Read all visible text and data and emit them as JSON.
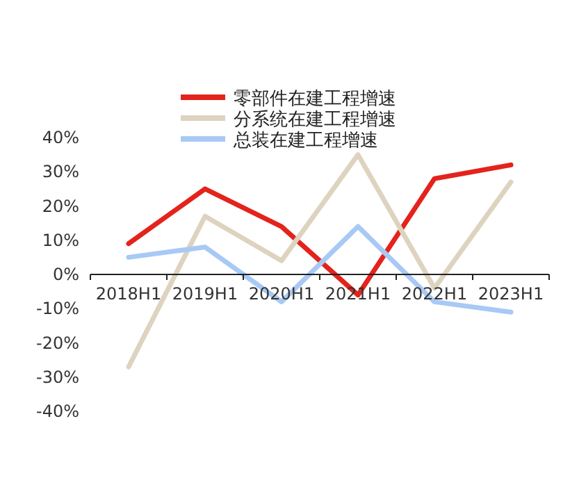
{
  "chart_data": {
    "type": "line",
    "categories": [
      "2018H1",
      "2019H1",
      "2020H1",
      "2021H1",
      "2022H1",
      "2023H1"
    ],
    "series": [
      {
        "name": "零部件在建工程增速",
        "color": "#e3231c",
        "values": [
          9,
          25,
          14,
          -6,
          28,
          32
        ]
      },
      {
        "name": "分系统在建工程增速",
        "color": "#ddd3bf",
        "values": [
          -27,
          17,
          4,
          35,
          -4,
          27
        ]
      },
      {
        "name": "总装在建工程增速",
        "color": "#a9c9f5",
        "values": [
          5,
          8,
          -8,
          14,
          -8,
          -11
        ]
      }
    ],
    "ylim": [
      -40,
      40
    ],
    "yticks": [
      {
        "value": -40,
        "label": "-40%"
      },
      {
        "value": -30,
        "label": "-30%"
      },
      {
        "value": -20,
        "label": "-20%"
      },
      {
        "value": -10,
        "label": "-10%"
      },
      {
        "value": 0,
        "label": "0%"
      },
      {
        "value": 10,
        "label": "10%"
      },
      {
        "value": 20,
        "label": "20%"
      },
      {
        "value": 30,
        "label": "30%"
      },
      {
        "value": 40,
        "label": "40%"
      }
    ],
    "legend": "top",
    "marker": "none",
    "line_style": "solid"
  }
}
